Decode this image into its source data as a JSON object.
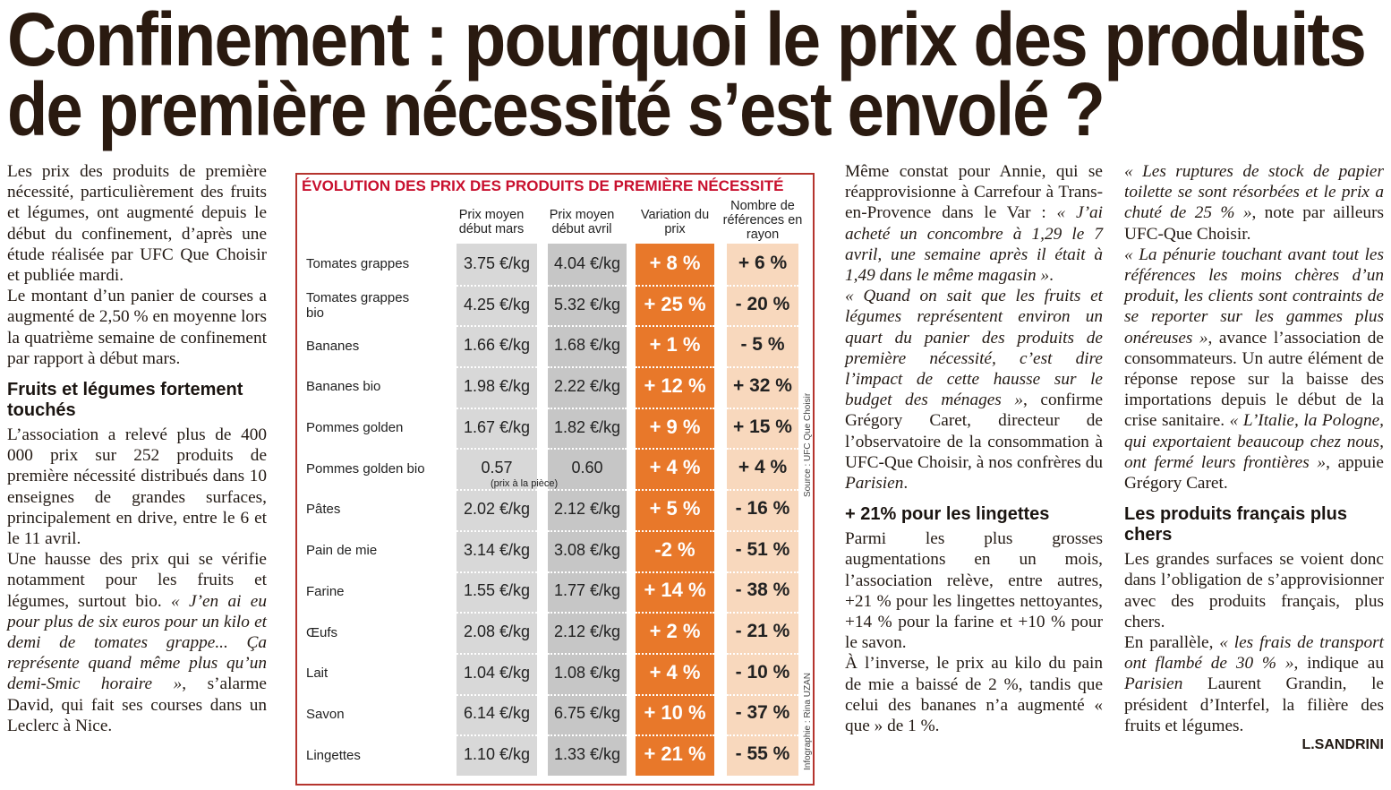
{
  "header": {
    "title_lines": [
      "Confinement : pourquoi le prix des produits",
      "de première nécessité s’est envolé ?"
    ]
  },
  "columns": [
    {
      "blocks": [
        {
          "p": [
            "Les prix des produits de première nécessité, particulièrement des fruits et légumes, ont augmenté depuis le début du confinement, d’après une étude réalisée par UFC Que Choisir et publiée mardi."
          ]
        },
        {
          "p": [
            "Le montant d’un panier de courses a augmenté de 2,50 % en moyenne lors la quatrième semaine de confinement par rapport à début mars."
          ]
        },
        {
          "h": "Fruits et légumes fortement touchés"
        },
        {
          "p": [
            "L’association a relevé plus de 400 000 prix sur 252 produits de première nécessité distribués dans 10 enseignes de grandes surfaces, principalement en drive, entre le 6 et le 11 avril."
          ]
        },
        {
          "p": [
            "Une hausse des prix qui se vérifie notamment pour les fruits et légumes, surtout bio. ",
            {
              "em": "« J’en ai eu pour plus de six euros pour un kilo et demi de tomates grappe... Ça représente quand même plus qu’un demi-Smic horaire »"
            },
            ", s’alarme David, qui fait ses courses dans un Leclerc à Nice."
          ]
        }
      ]
    },
    {
      "blocks": [
        {
          "p": [
            "Même constat pour Annie, qui se réapprovisionne à Carrefour à Trans-en-Provence dans le Var : ",
            {
              "em": "« J’ai acheté un concombre à 1,29 le 7 avril, une semaine après il était à 1,49 dans le même magasin »"
            },
            "."
          ]
        },
        {
          "p": [
            {
              "em": "« Quand on sait que les fruits et légumes représentent environ un quart du panier des produits de première nécessité, c’est dire l’impact de cette hausse sur le budget des ménages »"
            },
            ", confirme Grégory Caret, directeur de l’observatoire de la consommation à UFC-Que Choisir, à nos confrères du ",
            {
              "em": "Parisien"
            },
            "."
          ]
        },
        {
          "h": "+ 21% pour les lingettes"
        },
        {
          "p": [
            "Parmi les plus grosses augmentations en un mois, l’association relève, entre autres, +21 % pour les lingettes nettoyantes, +14 % pour la farine et +10 % pour le savon."
          ]
        },
        {
          "p": [
            "À l’inverse, le prix au kilo du pain de mie a baissé de 2 %, tandis que celui des bananes n’a augmenté « que » de 1 %."
          ]
        }
      ]
    },
    {
      "blocks": [
        {
          "p": [
            {
              "em": "« Les ruptures de stock de papier toilette se sont résorbées et le prix a chuté de 25 % »"
            },
            ", note par ailleurs UFC-Que Choisir."
          ]
        },
        {
          "p": [
            {
              "em": "« La pénurie touchant avant tout les références les moins chères d’un produit, les clients sont contraints de se reporter sur les gammes plus onéreuses »"
            },
            ", avance l’association de consommateurs. Un autre élément de réponse repose sur la baisse des importations depuis le début de la crise sanitaire. ",
            {
              "em": "« L’Italie, la Pologne, qui exportaient beaucoup chez nous, ont fermé leurs frontières »"
            },
            ", appuie Grégory Caret."
          ]
        },
        {
          "h": "Les produits français plus chers"
        },
        {
          "p": [
            "Les grandes surfaces se voient donc dans l’obligation de s’approvisionner avec des produits français, plus chers."
          ]
        },
        {
          "p": [
            "En parallèle, ",
            {
              "em": "« les frais de transport ont flambé de 30 % »"
            },
            ", indique au ",
            {
              "em": "Parisien"
            },
            " Laurent Grandin, le président d’Interfel, la filière des fruits et légumes."
          ]
        },
        {
          "sig": "L.SANDRINI"
        }
      ]
    }
  ],
  "table": {
    "title": "ÉVOLUTION DES PRIX DES PRODUITS DE PREMIÈRE NÉCESSITÉ",
    "headers": [
      "Prix moyen début mars",
      "Prix moyen début avril",
      "Variation du prix",
      "Nombre de références en rayon"
    ],
    "rows": [
      [
        "Tomates grappes",
        "3.75 €/kg",
        "4.04 €/kg",
        "+ 8 %",
        "+ 6 %"
      ],
      [
        "Tomates grappes bio",
        "4.25 €/kg",
        "5.32 €/kg",
        "+ 25 %",
        "- 20 %"
      ],
      [
        "Bananes",
        "1.66 €/kg",
        "1.68 €/kg",
        "+ 1 %",
        "- 5 %"
      ],
      [
        "Bananes bio",
        "1.98 €/kg",
        "2.22 €/kg",
        "+ 12 %",
        "+ 32 %"
      ],
      [
        "Pommes golden",
        "1.67 €/kg",
        "1.82 €/kg",
        "+ 9 %",
        "+ 15 %"
      ],
      [
        "Pommes golden bio",
        "0.57",
        "0.60",
        "+ 4 %",
        "+ 4 %"
      ],
      [
        "Pâtes",
        "2.02 €/kg",
        "2.12 €/kg",
        "+ 5 %",
        "- 16 %"
      ],
      [
        "Pain de mie",
        "3.14 €/kg",
        "3.08 €/kg",
        "-2 %",
        "- 51 %"
      ],
      [
        "Farine",
        "1.55 €/kg",
        "1.77 €/kg",
        "+ 14 %",
        "- 38 %"
      ],
      [
        "Œufs",
        "2.08 €/kg",
        "2.12 €/kg",
        "+ 2 %",
        "- 21 %"
      ],
      [
        "Lait",
        "1.04 €/kg",
        "1.08 €/kg",
        "+ 4 %",
        "- 10 %"
      ],
      [
        "Savon",
        "6.14 €/kg",
        "6.75 €/kg",
        "+ 10 %",
        "- 37 %"
      ],
      [
        "Lingettes",
        "1.10 €/kg",
        "1.33 €/kg",
        "+ 21 %",
        "- 55 %"
      ]
    ],
    "note": "(prix à la pièce)",
    "source": "Source : UFC Que Choisir",
    "credit": "Infographie : Rina UZAN"
  }
}
